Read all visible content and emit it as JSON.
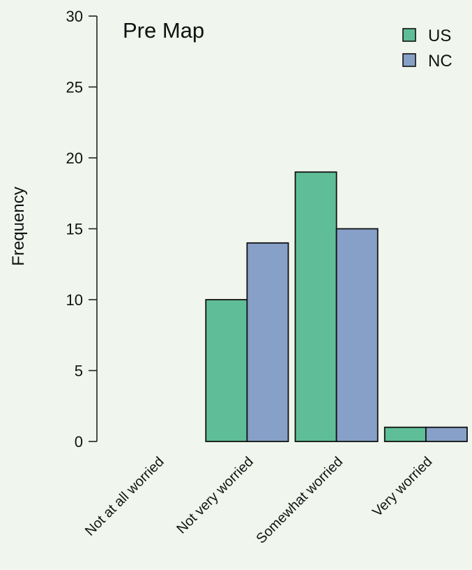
{
  "chart_data": {
    "type": "bar",
    "title": "Pre Map",
    "xlabel": "",
    "ylabel": "Frequency",
    "ylim": [
      0,
      30
    ],
    "yticks": [
      0,
      5,
      10,
      15,
      20,
      25,
      30
    ],
    "categories": [
      "Not at all worried",
      "Not very worried",
      "Somewhat worried",
      "Very worried"
    ],
    "series": [
      {
        "name": "US",
        "color": "#5fbe98",
        "values": [
          0,
          10,
          19,
          1
        ]
      },
      {
        "name": "NC",
        "color": "#87a0c8",
        "values": [
          0,
          14,
          15,
          1
        ]
      }
    ],
    "legend": "top-right",
    "grid": false
  }
}
